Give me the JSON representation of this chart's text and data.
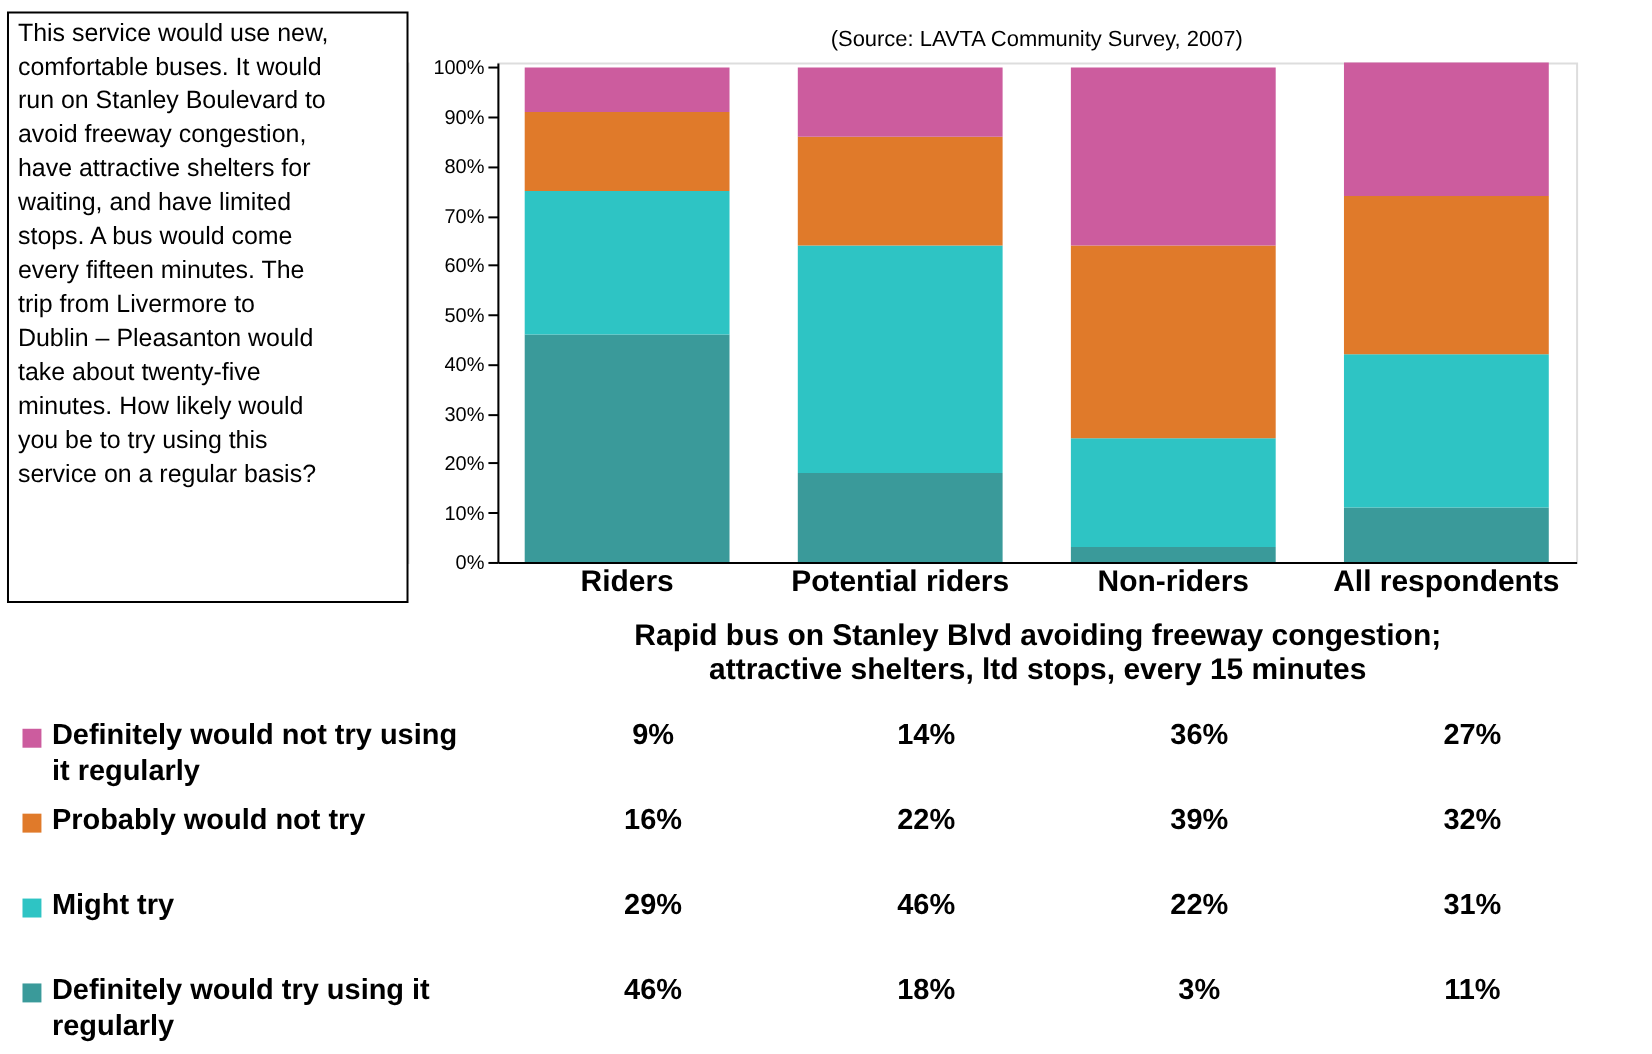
{
  "chart_data": {
    "type": "bar",
    "stacked": true,
    "categories": [
      "Riders",
      "Potential riders",
      "Non-riders",
      "All respondents"
    ],
    "xlabel": "Rapid bus on Stanley Blvd avoiding freeway congestion; attractive shelters, ltd stops, every 15 minutes",
    "annotations": [
      "This service would use new, comfortable buses. It would run on Stanley Boulevard to avoid freeway congestion, have attractive shelters for waiting, and have limited stops.  A bus would come every fifteen minutes. The trip from Livermore to Dublin – Pleasanton would take about twenty-five minutes.  How likely would you be to try using this service on a regular basis?",
      "(Source: LAVTA Community Survey, 2007)"
    ],
    "series": [
      {
        "name": "Definitely would try using it regularly",
        "color": "#3a9a9a",
        "values": [
          46,
          18,
          3,
          11
        ],
        "value_labels": [
          "46%",
          "18%",
          "3%",
          "11%"
        ]
      },
      {
        "name": "Might try",
        "color": "#2ec4c4",
        "values": [
          29,
          46,
          22,
          31
        ],
        "value_labels": [
          "29%",
          "46%",
          "22%",
          "31%"
        ]
      },
      {
        "name": "Probably would not try",
        "color": "#e07a2a",
        "values": [
          16,
          22,
          39,
          32
        ],
        "value_labels": [
          "16%",
          "22%",
          "39%",
          "32%"
        ]
      },
      {
        "name": "Definitely would not try using it regularly",
        "color": "#cc5c9e",
        "values": [
          9,
          14,
          36,
          27
        ],
        "value_labels": [
          "9%",
          "14%",
          "36%",
          "27%"
        ]
      }
    ],
    "ylim": [
      0,
      101
    ],
    "yticks": [
      {
        "value": 0,
        "label": "0%"
      },
      {
        "value": 10,
        "label": "10%"
      },
      {
        "value": 20,
        "label": "20%"
      },
      {
        "value": 30,
        "label": "30%"
      },
      {
        "value": 40,
        "label": "40%"
      },
      {
        "value": 50,
        "label": "50%"
      },
      {
        "value": 60,
        "label": "60%"
      },
      {
        "value": 70,
        "label": "70%"
      },
      {
        "value": 80,
        "label": "80%"
      },
      {
        "value": 90,
        "label": "90%"
      },
      {
        "value": 100,
        "label": "100%"
      }
    ],
    "grid": false,
    "legend": "bottom"
  }
}
